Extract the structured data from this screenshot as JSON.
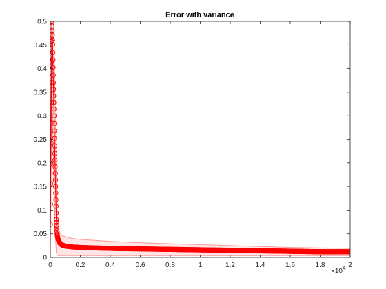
{
  "chart_data": {
    "type": "line",
    "title": "Error with variance",
    "xlabel": "",
    "ylabel": "",
    "x_exponent_label": "×10",
    "x_exponent_power": "4",
    "xlim": [
      0,
      20000
    ],
    "ylim": [
      0,
      0.5
    ],
    "x_ticks": [
      0,
      2000,
      4000,
      6000,
      8000,
      10000,
      12000,
      14000,
      16000,
      18000,
      20000
    ],
    "x_tick_labels": [
      "0",
      "0.2",
      "0.4",
      "0.6",
      "0.8",
      "1",
      "1.2",
      "1.4",
      "1.6",
      "1.8",
      "2"
    ],
    "y_ticks": [
      0,
      0.05,
      0.1,
      0.15,
      0.2,
      0.25,
      0.3,
      0.35,
      0.4,
      0.45,
      0.5
    ],
    "y_tick_labels": [
      "0",
      "0.05",
      "0.1",
      "0.15",
      "0.2",
      "0.25",
      "0.3",
      "0.35",
      "0.4",
      "0.45",
      "0.5"
    ],
    "grid": false,
    "marker": "circle",
    "series_color": "#ff0000",
    "band_color": "#ff9999",
    "series": [
      {
        "x": [
          0,
          100,
          150,
          200,
          250,
          300,
          350,
          400,
          450,
          500,
          600,
          700,
          800,
          1000,
          1200,
          1500,
          2000,
          3000,
          4000,
          6000,
          8000,
          10000,
          12000,
          14000,
          16000,
          18000,
          20000
        ],
        "y": [
          0.07,
          0.5,
          0.45,
          0.37,
          0.3,
          0.22,
          0.15,
          0.08,
          0.05,
          0.04,
          0.032,
          0.028,
          0.026,
          0.024,
          0.023,
          0.022,
          0.021,
          0.02,
          0.019,
          0.018,
          0.017,
          0.016,
          0.015,
          0.014,
          0.013,
          0.012,
          0.012
        ],
        "lower": [
          0.0,
          0.36,
          0.3,
          0.22,
          0.15,
          0.08,
          0.04,
          0.01,
          0.005,
          0.004,
          0.004,
          0.004,
          0.004,
          0.004,
          0.004,
          0.004,
          0.004,
          0.004,
          0.004,
          0.004,
          0.004,
          0.004,
          0.004,
          0.004,
          0.004,
          0.004,
          0.004
        ],
        "upper": [
          0.14,
          0.5,
          0.5,
          0.5,
          0.45,
          0.36,
          0.26,
          0.15,
          0.09,
          0.07,
          0.055,
          0.05,
          0.046,
          0.044,
          0.042,
          0.04,
          0.038,
          0.036,
          0.034,
          0.031,
          0.029,
          0.027,
          0.025,
          0.023,
          0.021,
          0.02,
          0.019
        ]
      }
    ]
  }
}
